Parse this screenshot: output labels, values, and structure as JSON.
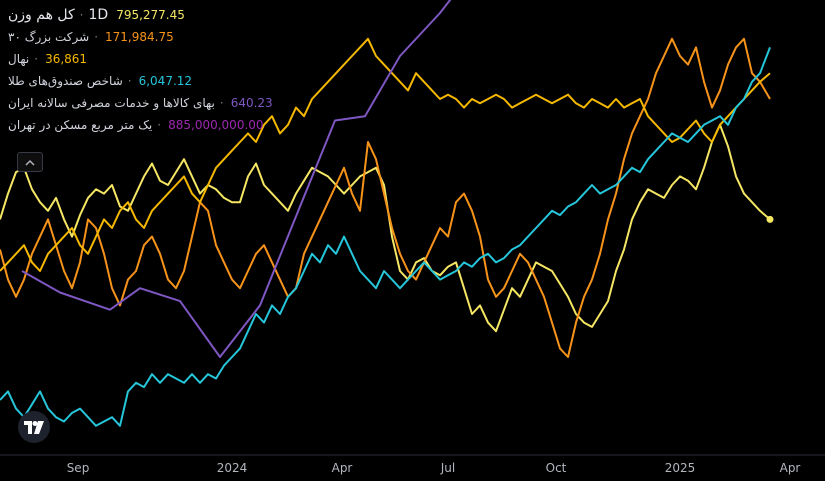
{
  "legend": {
    "main": {
      "name": "کل هم وزن",
      "interval": "1D",
      "value": "795,277.45",
      "color": "#f5e663"
    },
    "rows": [
      {
        "name": "شرکت بزرگ ۳۰",
        "value": "171,984.75",
        "color": "#f7931a"
      },
      {
        "name": "نهال",
        "value": "36,861",
        "color": "#f5b800"
      },
      {
        "name": "شاخص صندوق‌های طلا",
        "value": "6,047.12",
        "color": "#26c6da"
      },
      {
        "name": "بهای کالاها و خدمات مصرفی سالانه ایران",
        "value": "640.23",
        "color": "#7e57c2"
      },
      {
        "name": "یک متر مربع مسکن در تهران",
        "value": "885,000,000.00",
        "color": "#9c27b0"
      }
    ]
  },
  "icons": {
    "collapse": "chevron-up-icon",
    "logo": "tradingview-logo-icon"
  },
  "chart_data": {
    "type": "line",
    "x_tick_labels": [
      "Sep",
      "2024",
      "Apr",
      "Jul",
      "Oct",
      "2025",
      "Apr"
    ],
    "grid": false,
    "legend_placement": "top-left",
    "y_ylim": [
      0,
      100
    ],
    "series": [
      {
        "name": "کل هم وزن",
        "color": "#f5e663",
        "x": [
          0,
          8,
          16,
          24,
          32,
          40,
          48,
          56,
          64,
          72,
          80,
          88,
          96,
          104,
          112,
          120,
          128,
          136,
          144,
          152,
          160,
          168,
          176,
          184,
          192,
          200,
          208,
          216,
          224,
          232,
          240,
          248,
          256,
          264,
          272,
          280,
          288,
          296,
          304,
          312,
          320,
          328,
          336,
          344,
          352,
          360,
          368,
          376,
          384,
          392,
          400,
          408,
          416,
          424,
          432,
          440,
          448,
          456,
          464,
          472,
          480,
          488,
          496,
          504,
          512,
          520,
          528,
          536,
          544,
          552,
          560,
          568,
          576,
          584,
          592,
          600,
          608,
          616,
          624,
          632,
          640,
          648,
          656,
          664,
          672,
          680,
          688,
          696,
          704,
          712,
          720,
          728,
          736,
          744,
          752,
          760,
          770
        ],
        "y": [
          52,
          58,
          63,
          64,
          59,
          56,
          54,
          57,
          52,
          48,
          53,
          57,
          59,
          58,
          60,
          55,
          54,
          58,
          62,
          65,
          61,
          60,
          63,
          66,
          62,
          58,
          60,
          59,
          57,
          56,
          56,
          62,
          65,
          60,
          58,
          56,
          54,
          58,
          61,
          64,
          63,
          62,
          60,
          58,
          60,
          62,
          63,
          64,
          60,
          48,
          40,
          38,
          42,
          43,
          40,
          39,
          41,
          42,
          36,
          30,
          32,
          28,
          26,
          31,
          36,
          34,
          38,
          42,
          41,
          40,
          37,
          34,
          30,
          28,
          27,
          30,
          33,
          40,
          45,
          52,
          56,
          59,
          58,
          57,
          60,
          62,
          61,
          59,
          64,
          70,
          74,
          69,
          62,
          58,
          56,
          54,
          52
        ]
      },
      {
        "name": "شرکت بزرگ ۳۰",
        "color": "#f7931a",
        "x": [
          0,
          8,
          16,
          24,
          32,
          40,
          48,
          56,
          64,
          72,
          80,
          88,
          96,
          104,
          112,
          120,
          128,
          136,
          144,
          152,
          160,
          168,
          176,
          184,
          192,
          200,
          208,
          216,
          224,
          232,
          240,
          248,
          256,
          264,
          272,
          280,
          288,
          296,
          304,
          312,
          320,
          328,
          336,
          344,
          352,
          360,
          368,
          376,
          384,
          392,
          400,
          408,
          416,
          424,
          432,
          440,
          448,
          456,
          464,
          472,
          480,
          488,
          496,
          504,
          512,
          520,
          528,
          536,
          544,
          552,
          560,
          568,
          576,
          584,
          592,
          600,
          608,
          616,
          624,
          632,
          640,
          648,
          656,
          664,
          672,
          680,
          688,
          696,
          704,
          712,
          720,
          728,
          736,
          744,
          752,
          760,
          770
        ],
        "y": [
          45,
          38,
          34,
          38,
          44,
          48,
          52,
          46,
          40,
          36,
          42,
          52,
          50,
          44,
          36,
          32,
          38,
          40,
          46,
          48,
          44,
          38,
          36,
          40,
          48,
          56,
          54,
          46,
          42,
          38,
          36,
          40,
          44,
          46,
          42,
          38,
          34,
          36,
          44,
          48,
          52,
          56,
          60,
          64,
          58,
          54,
          70,
          66,
          58,
          50,
          44,
          40,
          38,
          42,
          46,
          50,
          48,
          56,
          58,
          54,
          48,
          38,
          34,
          36,
          40,
          44,
          42,
          38,
          34,
          28,
          22,
          20,
          28,
          34,
          38,
          44,
          52,
          58,
          66,
          72,
          76,
          80,
          86,
          90,
          94,
          90,
          88,
          92,
          84,
          78,
          82,
          88,
          92,
          94,
          86,
          84,
          80
        ]
      },
      {
        "name": "نهال",
        "color": "#f5b800",
        "x": [
          0,
          8,
          16,
          24,
          32,
          40,
          48,
          56,
          64,
          72,
          80,
          88,
          96,
          104,
          112,
          120,
          128,
          136,
          144,
          152,
          160,
          168,
          176,
          184,
          192,
          200,
          208,
          216,
          224,
          232,
          240,
          248,
          256,
          264,
          272,
          280,
          288,
          296,
          304,
          312,
          320,
          328,
          336,
          344,
          352,
          360,
          368,
          376,
          384,
          392,
          400,
          408,
          416,
          424,
          432,
          440,
          448,
          456,
          464,
          472,
          480,
          488,
          496,
          504,
          512,
          520,
          528,
          536,
          544,
          552,
          560,
          568,
          576,
          584,
          592,
          600,
          608,
          616,
          624,
          632,
          640,
          648,
          656,
          664,
          672,
          680,
          688,
          696,
          704,
          712,
          720,
          728,
          736,
          744,
          752,
          760,
          770
        ],
        "y": [
          40,
          42,
          44,
          46,
          42,
          40,
          44,
          46,
          48,
          50,
          46,
          44,
          48,
          52,
          50,
          54,
          56,
          52,
          50,
          54,
          56,
          58,
          60,
          62,
          58,
          56,
          60,
          64,
          66,
          68,
          70,
          72,
          70,
          74,
          76,
          72,
          74,
          78,
          76,
          80,
          82,
          84,
          86,
          88,
          90,
          92,
          94,
          90,
          88,
          86,
          84,
          82,
          86,
          84,
          82,
          80,
          81,
          80,
          78,
          80,
          79,
          80,
          81,
          80,
          78,
          79,
          80,
          81,
          80,
          79,
          80,
          81,
          79,
          78,
          80,
          79,
          78,
          80,
          78,
          79,
          80,
          76,
          74,
          72,
          70,
          71,
          73,
          75,
          72,
          70,
          74,
          76,
          78,
          80,
          82,
          84,
          86
        ]
      },
      {
        "name": "شاخص صندوق‌های طلا",
        "color": "#26c6da",
        "x": [
          0,
          8,
          16,
          24,
          32,
          40,
          48,
          56,
          64,
          72,
          80,
          88,
          96,
          104,
          112,
          120,
          128,
          136,
          144,
          152,
          160,
          168,
          176,
          184,
          192,
          200,
          208,
          216,
          224,
          232,
          240,
          248,
          256,
          264,
          272,
          280,
          288,
          296,
          304,
          312,
          320,
          328,
          336,
          344,
          352,
          360,
          368,
          376,
          384,
          392,
          400,
          408,
          416,
          424,
          432,
          440,
          448,
          456,
          464,
          472,
          480,
          488,
          496,
          504,
          512,
          520,
          528,
          536,
          544,
          552,
          560,
          568,
          576,
          584,
          592,
          600,
          608,
          616,
          624,
          632,
          640,
          648,
          656,
          664,
          672,
          680,
          688,
          696,
          704,
          712,
          720,
          728,
          736,
          744,
          752,
          760,
          770
        ],
        "y": [
          10,
          12,
          8,
          6,
          9,
          12,
          8,
          6,
          5,
          7,
          8,
          6,
          4,
          5,
          6,
          4,
          12,
          14,
          13,
          16,
          14,
          16,
          15,
          14,
          16,
          14,
          16,
          15,
          18,
          20,
          22,
          26,
          30,
          28,
          32,
          30,
          34,
          36,
          40,
          44,
          42,
          46,
          44,
          48,
          44,
          40,
          38,
          36,
          40,
          38,
          36,
          38,
          40,
          42,
          40,
          38,
          39,
          40,
          42,
          41,
          43,
          44,
          42,
          43,
          45,
          46,
          48,
          50,
          52,
          54,
          53,
          55,
          56,
          58,
          60,
          58,
          59,
          60,
          62,
          64,
          63,
          66,
          68,
          70,
          72,
          71,
          70,
          72,
          74,
          75,
          76,
          74,
          78,
          80,
          84,
          86,
          92
        ]
      },
      {
        "name": "بهای کالاها و خدمات مصرفی سالانه ایران",
        "color": "#7e57c2",
        "x": [
          22,
          60,
          110,
          140,
          180,
          220,
          260,
          300,
          335,
          365,
          400,
          440,
          470,
          510
        ],
        "y": [
          40,
          35,
          31,
          36,
          33,
          20,
          32,
          55,
          75,
          76,
          90,
          100,
          109,
          118
        ]
      },
      {
        "name": "یک متر مربع مسکن در تهران",
        "color": "#9c27b0",
        "x": [],
        "y": []
      }
    ]
  }
}
